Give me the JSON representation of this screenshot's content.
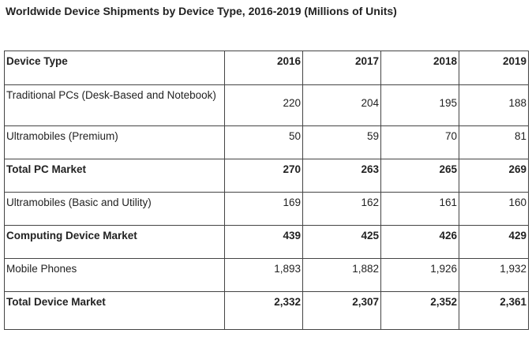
{
  "title": "Worldwide Device Shipments by Device Type, 2016-2019 (Millions of Units)",
  "chart_data": {
    "type": "table",
    "title": "Worldwide Device Shipments by Device Type, 2016-2019 (Millions of Units)",
    "header": [
      "Device Type",
      "2016",
      "2017",
      "2018",
      "2019"
    ],
    "rows": [
      {
        "label": "Traditional PCs (Desk-Based and Notebook)",
        "values": [
          "220",
          "204",
          "195",
          "188"
        ],
        "bold": false
      },
      {
        "label": "Ultramobiles (Premium)",
        "values": [
          "50",
          "59",
          "70",
          "81"
        ],
        "bold": false
      },
      {
        "label": "Total PC Market",
        "values": [
          "270",
          "263",
          "265",
          "269"
        ],
        "bold": true
      },
      {
        "label": "Ultramobiles (Basic and Utility)",
        "values": [
          "169",
          "162",
          "161",
          "160"
        ],
        "bold": false
      },
      {
        "label": "Computing Device Market",
        "values": [
          "439",
          "425",
          "426",
          "429"
        ],
        "bold": true
      },
      {
        "label": "Mobile Phones",
        "values": [
          "1,893",
          "1,882",
          "1,926",
          "1,932"
        ],
        "bold": false
      },
      {
        "label": "Total Device Market",
        "values": [
          "2,332",
          "2,307",
          "2,352",
          "2,361"
        ],
        "bold": true
      }
    ]
  }
}
